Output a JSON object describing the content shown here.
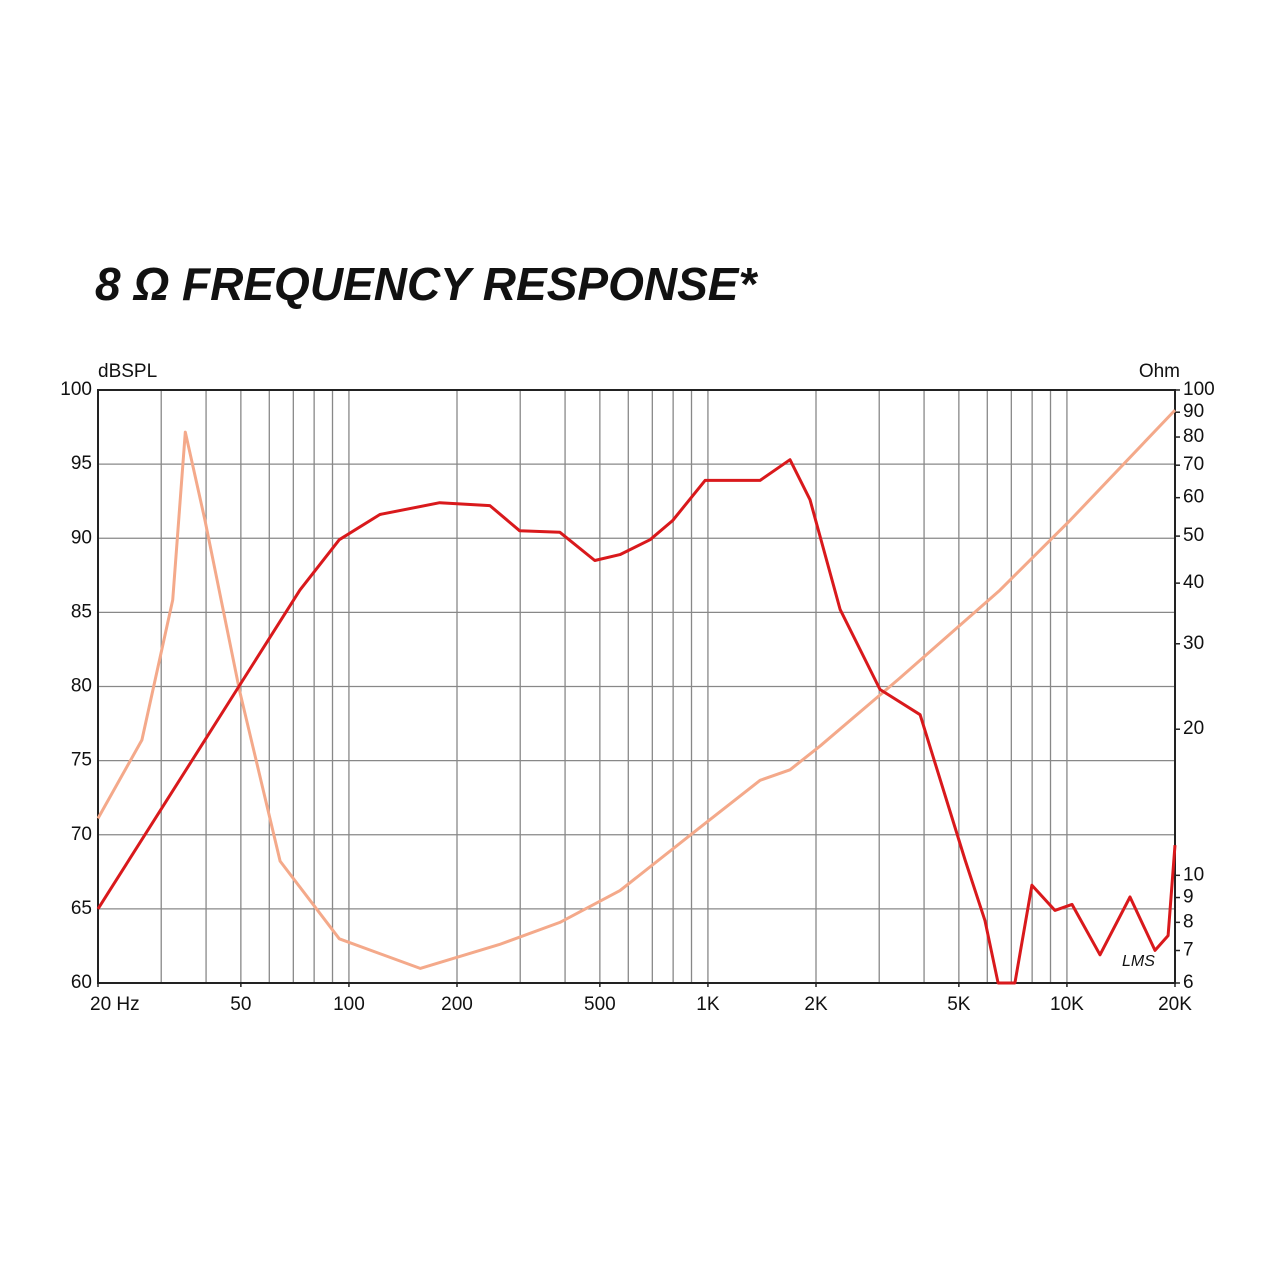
{
  "chart_data": {
    "type": "line",
    "title": "8 Ω FREQUENCY RESPONSE*",
    "y_label": "dBSPL",
    "y2_label": "Ohm",
    "annotation": "LMS",
    "xlog": true,
    "y2log": true,
    "grid": true,
    "xlim": [
      20,
      20000
    ],
    "xticks": [
      {
        "value": 20,
        "label": "20 Hz"
      },
      50,
      100,
      200,
      500,
      {
        "value": 1000,
        "label": "1K"
      },
      {
        "value": 2000,
        "label": "2K"
      },
      {
        "value": 5000,
        "label": "5K"
      },
      {
        "value": 10000,
        "label": "10K"
      },
      {
        "value": 20000,
        "label": "20K"
      }
    ],
    "xgrid": [
      30,
      40,
      50,
      60,
      70,
      80,
      90,
      100,
      200,
      300,
      400,
      500,
      600,
      700,
      800,
      900,
      1000,
      2000,
      3000,
      4000,
      5000,
      6000,
      7000,
      8000,
      9000,
      10000
    ],
    "ylim": [
      60,
      100
    ],
    "yticks": [
      60,
      65,
      70,
      75,
      80,
      85,
      90,
      95,
      100
    ],
    "y2lim": [
      6,
      100
    ],
    "y2ticks": [
      6,
      7,
      8,
      9,
      10,
      20,
      30,
      40,
      50,
      60,
      70,
      80,
      90,
      100
    ],
    "series": [
      {
        "name": "SPL",
        "color": "#d9191c",
        "x": [
          20,
          73,
          94,
          122,
          179,
          247,
          299,
          387,
          484,
          569,
          690,
          798,
          982,
          1397,
          1693,
          1925,
          2334,
          3016,
          3900,
          5205,
          5914,
          6430,
          7163,
          7990,
          9260,
          10330,
          12360,
          14990,
          17590,
          19130,
          20000
        ],
        "values": [
          65,
          86.5,
          89.9,
          91.6,
          92.4,
          92.2,
          90.5,
          90.4,
          88.5,
          88.9,
          89.9,
          91.2,
          93.9,
          93.9,
          95.3,
          92.6,
          85.2,
          79.8,
          78.1,
          68.3,
          64.2,
          60,
          60,
          66.6,
          64.9,
          65.3,
          61.9,
          65.8,
          62.2,
          63.2,
          69.3
        ]
      },
      {
        "name": "Impedance",
        "color": "#f4a98a",
        "axis": "y2",
        "x": [
          20,
          26.5,
          32.3,
          35,
          39.7,
          49.6,
          64.3,
          94,
          158,
          262,
          387,
          569,
          944,
          1397,
          1693,
          2058,
          3425,
          6510,
          10230,
          20000
        ],
        "values": [
          13.1,
          19,
          36.9,
          81.9,
          54,
          24,
          10.7,
          7.4,
          6.43,
          7.2,
          8.0,
          9.3,
          12.5,
          15.7,
          16.5,
          18.5,
          25.5,
          38.7,
          54,
          90.9
        ]
      }
    ]
  }
}
